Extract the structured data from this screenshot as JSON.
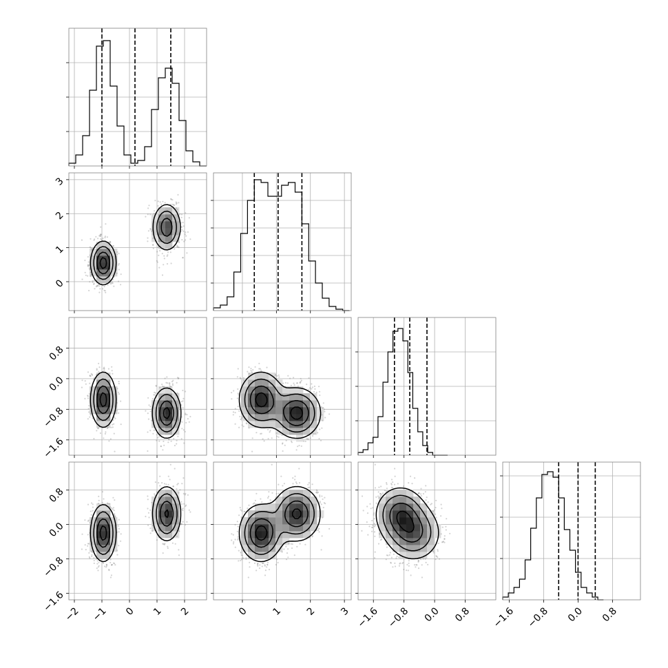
{
  "chart_data": {
    "type": "corner",
    "colors": {
      "line": "#000000",
      "grid": "#b0b0b0",
      "frame": "#808080"
    },
    "grid": true,
    "parameters": [
      {
        "range": [
          -2.2,
          2.8
        ],
        "ticks": [
          -2,
          -1,
          0,
          1,
          2
        ],
        "tick_labels": [
          "−2",
          "−1",
          "0",
          "1",
          "2"
        ],
        "quantiles": [
          -1.0,
          0.2,
          1.5
        ],
        "hist_bin_width": 0.25,
        "hist": [
          0.02,
          0.08,
          0.22,
          0.55,
          0.87,
          0.91,
          0.58,
          0.29,
          0.08,
          0.02,
          0.04,
          0.14,
          0.41,
          0.64,
          0.71,
          0.6,
          0.33,
          0.11,
          0.03,
          0.0
        ],
        "hist_ylim": [
          0,
          1.0
        ],
        "hist_yticks": [
          0.25,
          0.5,
          0.75
        ]
      },
      {
        "range": [
          -0.85,
          3.2
        ],
        "ticks": [
          0,
          1,
          2,
          3
        ],
        "tick_labels": [
          "0",
          "1",
          "2",
          "3"
        ],
        "quantiles": [
          0.35,
          1.05,
          1.75
        ],
        "hist_bin_width": 0.2,
        "hist": [
          0.02,
          0.04,
          0.1,
          0.28,
          0.56,
          0.8,
          0.95,
          0.93,
          0.83,
          0.83,
          0.91,
          0.93,
          0.86,
          0.63,
          0.36,
          0.2,
          0.09,
          0.03,
          0.01,
          0.0
        ],
        "hist_ylim": [
          0,
          1.0
        ],
        "hist_yticks": [
          0.2,
          0.4,
          0.6,
          0.8
        ]
      },
      {
        "range": [
          -2.0,
          1.6
        ],
        "ticks": [
          -1.6,
          -0.8,
          0.0,
          0.8
        ],
        "tick_labels": [
          "−1.6",
          "−0.8",
          "0.0",
          "0.8"
        ],
        "quantiles": [
          -1.05,
          -0.65,
          -0.2
        ],
        "hist_bin_width": 0.13,
        "hist": [
          0.02,
          0.04,
          0.09,
          0.13,
          0.28,
          0.53,
          0.75,
          0.9,
          0.92,
          0.83,
          0.6,
          0.34,
          0.17,
          0.07,
          0.02,
          0.0,
          0.0,
          0.0
        ],
        "hist_ylim": [
          0,
          1.0
        ],
        "hist_yticks": [
          0.25,
          0.5,
          0.75
        ]
      },
      {
        "range": [
          -1.75,
          1.45
        ],
        "ticks": [
          -1.6,
          -0.8,
          0.0,
          0.8
        ],
        "tick_labels": [
          "−1.6",
          "−0.8",
          "0.0",
          "0.8"
        ],
        "quantiles": [
          -0.45,
          0.0,
          0.4
        ],
        "hist_bin_width": 0.13,
        "hist": [
          0.02,
          0.05,
          0.09,
          0.15,
          0.29,
          0.52,
          0.74,
          0.91,
          0.93,
          0.89,
          0.74,
          0.51,
          0.36,
          0.2,
          0.09,
          0.05,
          0.02,
          0.0
        ],
        "hist_ylim": [
          0,
          1.0
        ],
        "hist_yticks": [
          0.3,
          0.6,
          0.9
        ]
      }
    ],
    "modes": [
      {
        "weight": 0.5,
        "mean": [
          -0.95,
          0.55,
          -0.55,
          -0.2
        ],
        "sd": [
          0.23,
          0.32,
          0.36,
          0.33
        ]
      },
      {
        "weight": 0.5,
        "mean": [
          1.35,
          1.6,
          -0.9,
          0.25
        ],
        "sd": [
          0.26,
          0.35,
          0.33,
          0.32
        ]
      }
    ],
    "n_scatter_points": 1500
  }
}
